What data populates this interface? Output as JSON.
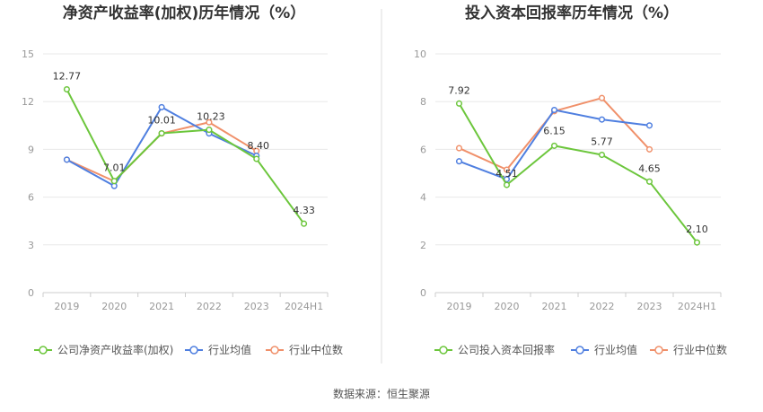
{
  "colors": {
    "company": "#6cc63c",
    "avg": "#4f7fe0",
    "median": "#f0906a",
    "grid": "#e8e8e8",
    "divider": "#dddddd"
  },
  "source": "数据来源：恒生聚源",
  "chart_data": [
    {
      "type": "line",
      "title": "净资产收益率(加权)历年情况（%）",
      "categories": [
        "2019",
        "2020",
        "2021",
        "2022",
        "2023",
        "2024H1"
      ],
      "ylim": [
        0,
        15
      ],
      "yticks": [
        0,
        3,
        6,
        9,
        12,
        15
      ],
      "grid": true,
      "legend_placement": "bottom",
      "series": [
        {
          "name": "公司净资产收益率(加权)",
          "color": "#6cc63c",
          "values": [
            12.77,
            7.01,
            10.01,
            10.23,
            8.4,
            4.33
          ],
          "labels": [
            "12.77",
            "7.01",
            "10.01",
            "10.23",
            "8.40",
            "4.33"
          ]
        },
        {
          "name": "行业均值",
          "color": "#4f7fe0",
          "values": [
            8.35,
            6.7,
            11.65,
            10.0,
            8.6,
            null
          ]
        },
        {
          "name": "行业中位数",
          "color": "#f0906a",
          "values": [
            8.35,
            7.0,
            10.0,
            10.7,
            8.9,
            null
          ]
        }
      ]
    },
    {
      "type": "line",
      "title": "投入资本回报率历年情况（%）",
      "categories": [
        "2019",
        "2020",
        "2021",
        "2022",
        "2023",
        "2024H1"
      ],
      "ylim": [
        0,
        10
      ],
      "yticks": [
        0,
        2,
        4,
        6,
        8,
        10
      ],
      "grid": true,
      "legend_placement": "bottom",
      "series": [
        {
          "name": "公司投入资本回报率",
          "color": "#6cc63c",
          "values": [
            7.92,
            4.51,
            6.15,
            5.77,
            4.65,
            2.1
          ],
          "labels": [
            "7.92",
            "4.51",
            "6.15",
            "5.77",
            "4.65",
            "2.10"
          ]
        },
        {
          "name": "行业均值",
          "color": "#4f7fe0",
          "values": [
            5.5,
            4.75,
            7.65,
            7.25,
            7.0,
            null
          ]
        },
        {
          "name": "行业中位数",
          "color": "#f0906a",
          "values": [
            6.05,
            5.15,
            7.6,
            8.15,
            6.0,
            null
          ]
        }
      ]
    }
  ]
}
